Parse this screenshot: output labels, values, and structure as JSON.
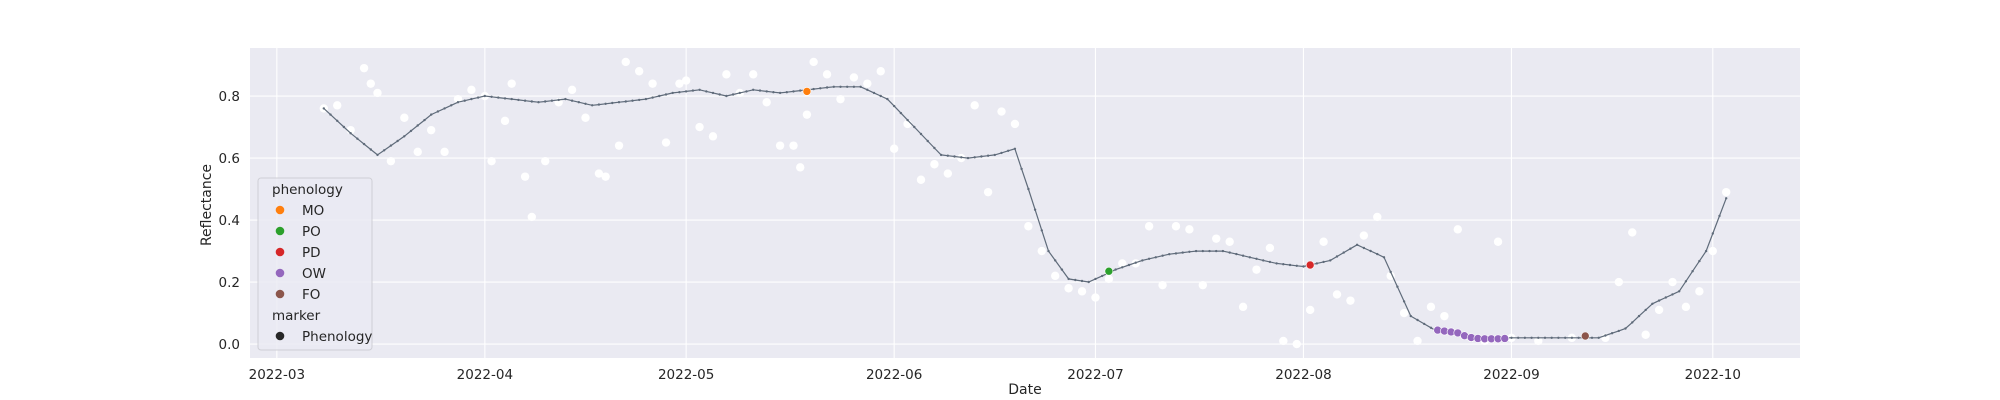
{
  "chart_data": {
    "type": "scatter",
    "title": "",
    "xlabel": "Date",
    "ylabel": "Reflectance",
    "x_ticks": [
      "2022-03",
      "2022-04",
      "2022-05",
      "2022-06",
      "2022-07",
      "2022-08",
      "2022-09",
      "2022-10"
    ],
    "x_range": [
      "2022-02-25",
      "2022-10-14"
    ],
    "y_ticks": [
      "0.0",
      "0.2",
      "0.4",
      "0.6",
      "0.8"
    ],
    "ylim": [
      -0.045,
      0.955
    ],
    "grid": true,
    "legend": {
      "placement": "lower-left",
      "hue_title": "phenology",
      "marker_title": "marker",
      "entries": [
        {
          "label": "MO",
          "color": "#ff7f0e"
        },
        {
          "label": "PO",
          "color": "#2ca02c"
        },
        {
          "label": "PD",
          "color": "#d62728"
        },
        {
          "label": "OW",
          "color": "#9467bd"
        },
        {
          "label": "FO",
          "color": "#8c564b"
        }
      ],
      "marker_entries": [
        {
          "label": "Phenology",
          "color": "#262626"
        }
      ]
    },
    "colors": {
      "background": "#eaeaf2",
      "grid": "#ffffff",
      "observation": "#ffffff",
      "smoothed_line": "#5f6b7a"
    },
    "observations": {
      "name": "",
      "x": [
        "2022-03-08",
        "2022-03-10",
        "2022-03-12",
        "2022-03-14",
        "2022-03-15",
        "2022-03-16",
        "2022-03-18",
        "2022-03-20",
        "2022-03-22",
        "2022-03-24",
        "2022-03-26",
        "2022-03-28",
        "2022-03-30",
        "2022-04-01",
        "2022-04-02",
        "2022-04-04",
        "2022-04-05",
        "2022-04-07",
        "2022-04-08",
        "2022-04-10",
        "2022-04-12",
        "2022-04-14",
        "2022-04-16",
        "2022-04-18",
        "2022-04-19",
        "2022-04-21",
        "2022-04-22",
        "2022-04-24",
        "2022-04-26",
        "2022-04-28",
        "2022-04-30",
        "2022-05-01",
        "2022-05-03",
        "2022-05-05",
        "2022-05-07",
        "2022-05-09",
        "2022-05-11",
        "2022-05-13",
        "2022-05-15",
        "2022-05-17",
        "2022-05-18",
        "2022-05-19",
        "2022-05-20",
        "2022-05-22",
        "2022-05-24",
        "2022-05-26",
        "2022-05-28",
        "2022-05-30",
        "2022-06-01",
        "2022-06-03",
        "2022-06-05",
        "2022-06-07",
        "2022-06-09",
        "2022-06-11",
        "2022-06-13",
        "2022-06-15",
        "2022-06-17",
        "2022-06-19",
        "2022-06-21",
        "2022-06-23",
        "2022-06-25",
        "2022-06-27",
        "2022-06-29",
        "2022-07-01",
        "2022-07-03",
        "2022-07-05",
        "2022-07-07",
        "2022-07-09",
        "2022-07-11",
        "2022-07-13",
        "2022-07-15",
        "2022-07-17",
        "2022-07-19",
        "2022-07-21",
        "2022-07-23",
        "2022-07-25",
        "2022-07-27",
        "2022-07-29",
        "2022-07-31",
        "2022-08-02",
        "2022-08-04",
        "2022-08-06",
        "2022-08-08",
        "2022-08-10",
        "2022-08-12",
        "2022-08-14",
        "2022-08-16",
        "2022-08-18",
        "2022-08-20",
        "2022-08-22",
        "2022-08-24",
        "2022-08-26",
        "2022-08-28",
        "2022-08-30",
        "2022-09-01",
        "2022-09-05",
        "2022-09-10",
        "2022-09-15",
        "2022-09-17",
        "2022-09-19",
        "2022-09-21",
        "2022-09-23",
        "2022-09-25",
        "2022-09-27",
        "2022-09-29",
        "2022-10-01",
        "2022-10-03"
      ],
      "y": [
        0.76,
        0.77,
        0.69,
        0.89,
        0.84,
        0.81,
        0.59,
        0.73,
        0.62,
        0.69,
        0.62,
        0.79,
        0.82,
        0.8,
        0.59,
        0.72,
        0.84,
        0.54,
        0.41,
        0.59,
        0.78,
        0.82,
        0.73,
        0.55,
        0.54,
        0.64,
        0.91,
        0.88,
        0.84,
        0.65,
        0.84,
        0.85,
        0.7,
        0.67,
        0.87,
        0.81,
        0.87,
        0.78,
        0.64,
        0.64,
        0.57,
        0.74,
        0.91,
        0.87,
        0.79,
        0.86,
        0.84,
        0.88,
        0.63,
        0.71,
        0.53,
        0.58,
        0.55,
        0.6,
        0.77,
        0.49,
        0.75,
        0.71,
        0.38,
        0.3,
        0.22,
        0.18,
        0.17,
        0.15,
        0.21,
        0.26,
        0.26,
        0.38,
        0.19,
        0.38,
        0.37,
        0.19,
        0.34,
        0.33,
        0.12,
        0.24,
        0.31,
        0.01,
        0.0,
        0.11,
        0.33,
        0.16,
        0.14,
        0.35,
        0.41,
        0.22,
        0.1,
        0.01,
        0.12,
        0.09,
        0.37,
        0.02,
        0.01,
        0.33,
        0.02,
        0.01,
        0.02,
        0.02,
        0.2,
        0.36,
        0.03,
        0.11,
        0.2,
        0.12,
        0.17,
        0.3,
        0.49
      ]
    },
    "smoothed": {
      "name": "",
      "x": [
        "2022-03-08",
        "2022-03-12",
        "2022-03-16",
        "2022-03-20",
        "2022-03-24",
        "2022-03-28",
        "2022-04-01",
        "2022-04-05",
        "2022-04-09",
        "2022-04-13",
        "2022-04-17",
        "2022-04-21",
        "2022-04-25",
        "2022-04-29",
        "2022-05-03",
        "2022-05-07",
        "2022-05-11",
        "2022-05-15",
        "2022-05-19",
        "2022-05-23",
        "2022-05-27",
        "2022-05-31",
        "2022-06-04",
        "2022-06-08",
        "2022-06-12",
        "2022-06-16",
        "2022-06-19",
        "2022-06-21",
        "2022-06-24",
        "2022-06-27",
        "2022-06-30",
        "2022-07-04",
        "2022-07-08",
        "2022-07-12",
        "2022-07-16",
        "2022-07-20",
        "2022-07-24",
        "2022-07-28",
        "2022-08-01",
        "2022-08-05",
        "2022-08-09",
        "2022-08-13",
        "2022-08-17",
        "2022-08-21",
        "2022-08-25",
        "2022-08-29",
        "2022-09-02",
        "2022-09-06",
        "2022-09-10",
        "2022-09-14",
        "2022-09-18",
        "2022-09-22",
        "2022-09-26",
        "2022-09-30",
        "2022-10-03"
      ],
      "y": [
        0.76,
        0.68,
        0.61,
        0.67,
        0.74,
        0.78,
        0.8,
        0.79,
        0.78,
        0.79,
        0.77,
        0.78,
        0.79,
        0.81,
        0.82,
        0.8,
        0.82,
        0.81,
        0.82,
        0.83,
        0.83,
        0.79,
        0.7,
        0.61,
        0.6,
        0.61,
        0.63,
        0.5,
        0.3,
        0.21,
        0.2,
        0.24,
        0.27,
        0.29,
        0.3,
        0.3,
        0.28,
        0.26,
        0.25,
        0.27,
        0.32,
        0.28,
        0.09,
        0.04,
        0.03,
        0.02,
        0.02,
        0.02,
        0.02,
        0.02,
        0.05,
        0.13,
        0.17,
        0.3,
        0.47
      ]
    },
    "phenology_points": [
      {
        "label": "MO",
        "x": "2022-05-19",
        "y": 0.815
      },
      {
        "label": "PO",
        "x": "2022-07-03",
        "y": 0.235
      },
      {
        "label": "PD",
        "x": "2022-08-02",
        "y": 0.255
      },
      {
        "label": "OW",
        "x": "2022-08-21",
        "y": 0.045
      },
      {
        "label": "OW",
        "x": "2022-08-22",
        "y": 0.042
      },
      {
        "label": "OW",
        "x": "2022-08-23",
        "y": 0.039
      },
      {
        "label": "OW",
        "x": "2022-08-24",
        "y": 0.036
      },
      {
        "label": "OW",
        "x": "2022-08-25",
        "y": 0.027
      },
      {
        "label": "OW",
        "x": "2022-08-26",
        "y": 0.021
      },
      {
        "label": "OW",
        "x": "2022-08-27",
        "y": 0.018
      },
      {
        "label": "OW",
        "x": "2022-08-28",
        "y": 0.017
      },
      {
        "label": "OW",
        "x": "2022-08-29",
        "y": 0.017
      },
      {
        "label": "OW",
        "x": "2022-08-30",
        "y": 0.017
      },
      {
        "label": "OW",
        "x": "2022-08-31",
        "y": 0.018
      },
      {
        "label": "FO",
        "x": "2022-09-12",
        "y": 0.026
      }
    ]
  }
}
